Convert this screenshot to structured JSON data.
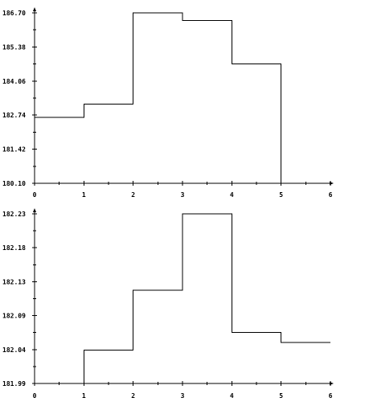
{
  "chart_data": [
    {
      "type": "step",
      "title": "",
      "xlabel": "",
      "ylabel": "",
      "xlim": [
        0,
        6
      ],
      "ylim": [
        180.1,
        186.7
      ],
      "x_ticks": [
        "0",
        "1",
        "2",
        "3",
        "4",
        "5",
        "6"
      ],
      "y_ticks": [
        "180.10",
        "181.42",
        "182.74",
        "184.06",
        "185.38",
        "186.70"
      ],
      "grid": false,
      "color": "#000000",
      "segments": [
        {
          "x0": 0,
          "x1": 1,
          "y": 182.66
        },
        {
          "x0": 1,
          "x1": 2,
          "y": 183.16
        },
        {
          "x0": 2,
          "x1": 3,
          "y": 186.7
        },
        {
          "x0": 3,
          "x1": 4,
          "y": 186.4
        },
        {
          "x0": 4,
          "x1": 5,
          "y": 184.72
        }
      ],
      "end_drop": {
        "x": 5,
        "y": 180.1
      }
    },
    {
      "type": "step",
      "title": "",
      "xlabel": "",
      "ylabel": "",
      "xlim": [
        0,
        6
      ],
      "ylim": [
        181.99,
        182.23
      ],
      "x_ticks": [
        "0",
        "1",
        "2",
        "3",
        "4",
        "5",
        "6"
      ],
      "y_ticks": [
        "181.99",
        "182.04",
        "182.09",
        "182.13",
        "182.18",
        "182.23"
      ],
      "grid": false,
      "color": "#000000",
      "start_rise": {
        "x": 1,
        "y": 181.99
      },
      "segments": [
        {
          "x0": 1,
          "x1": 2,
          "y": 182.037
        },
        {
          "x0": 2,
          "x1": 3,
          "y": 182.122
        },
        {
          "x0": 3,
          "x1": 4,
          "y": 182.23
        },
        {
          "x0": 4,
          "x1": 5,
          "y": 182.062
        },
        {
          "x0": 5,
          "x1": 6,
          "y": 182.048
        }
      ]
    }
  ]
}
